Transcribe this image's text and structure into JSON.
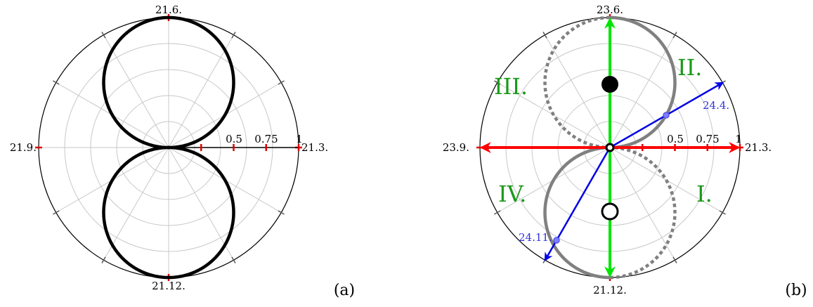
{
  "panels": [
    {
      "id": "a",
      "panel_label": "(a)",
      "angle_labels": {
        "right": "21.3.",
        "top": "21.6.",
        "left": "21.9.",
        "bottom": "21.12."
      },
      "radial_tick_labels": [
        "0.5",
        "0.75",
        "1"
      ],
      "radial_ticks": [
        0.25,
        0.5,
        0.75,
        1.0
      ],
      "curve": {
        "type": "sin2-polar-lemniscate",
        "style": "solid",
        "color": "#000000"
      }
    },
    {
      "id": "b",
      "panel_label": "(b)",
      "angle_labels": {
        "right": "21.3.",
        "top": "23.6.",
        "left": "23.9.",
        "bottom": "21.12."
      },
      "radial_tick_labels": [
        "0.5",
        "0.75",
        "1"
      ],
      "radial_ticks": [
        0.25,
        0.5,
        0.75,
        1.0
      ],
      "quadrant_labels": {
        "I": "I.",
        "II": "II.",
        "III": "III.",
        "IV": "IV."
      },
      "date_markers": [
        {
          "label": "24.4.",
          "angle_deg": 30,
          "r": 0.5
        },
        {
          "label": "24.11.",
          "angle_deg": 240,
          "r": 0.9
        }
      ],
      "colors": {
        "horizontal_axis": "#ff0000",
        "vertical_axis": "#00e600",
        "date_line": "#0000e6",
        "curve": "#808080",
        "quadrant_text": "#1a991a"
      }
    }
  ]
}
